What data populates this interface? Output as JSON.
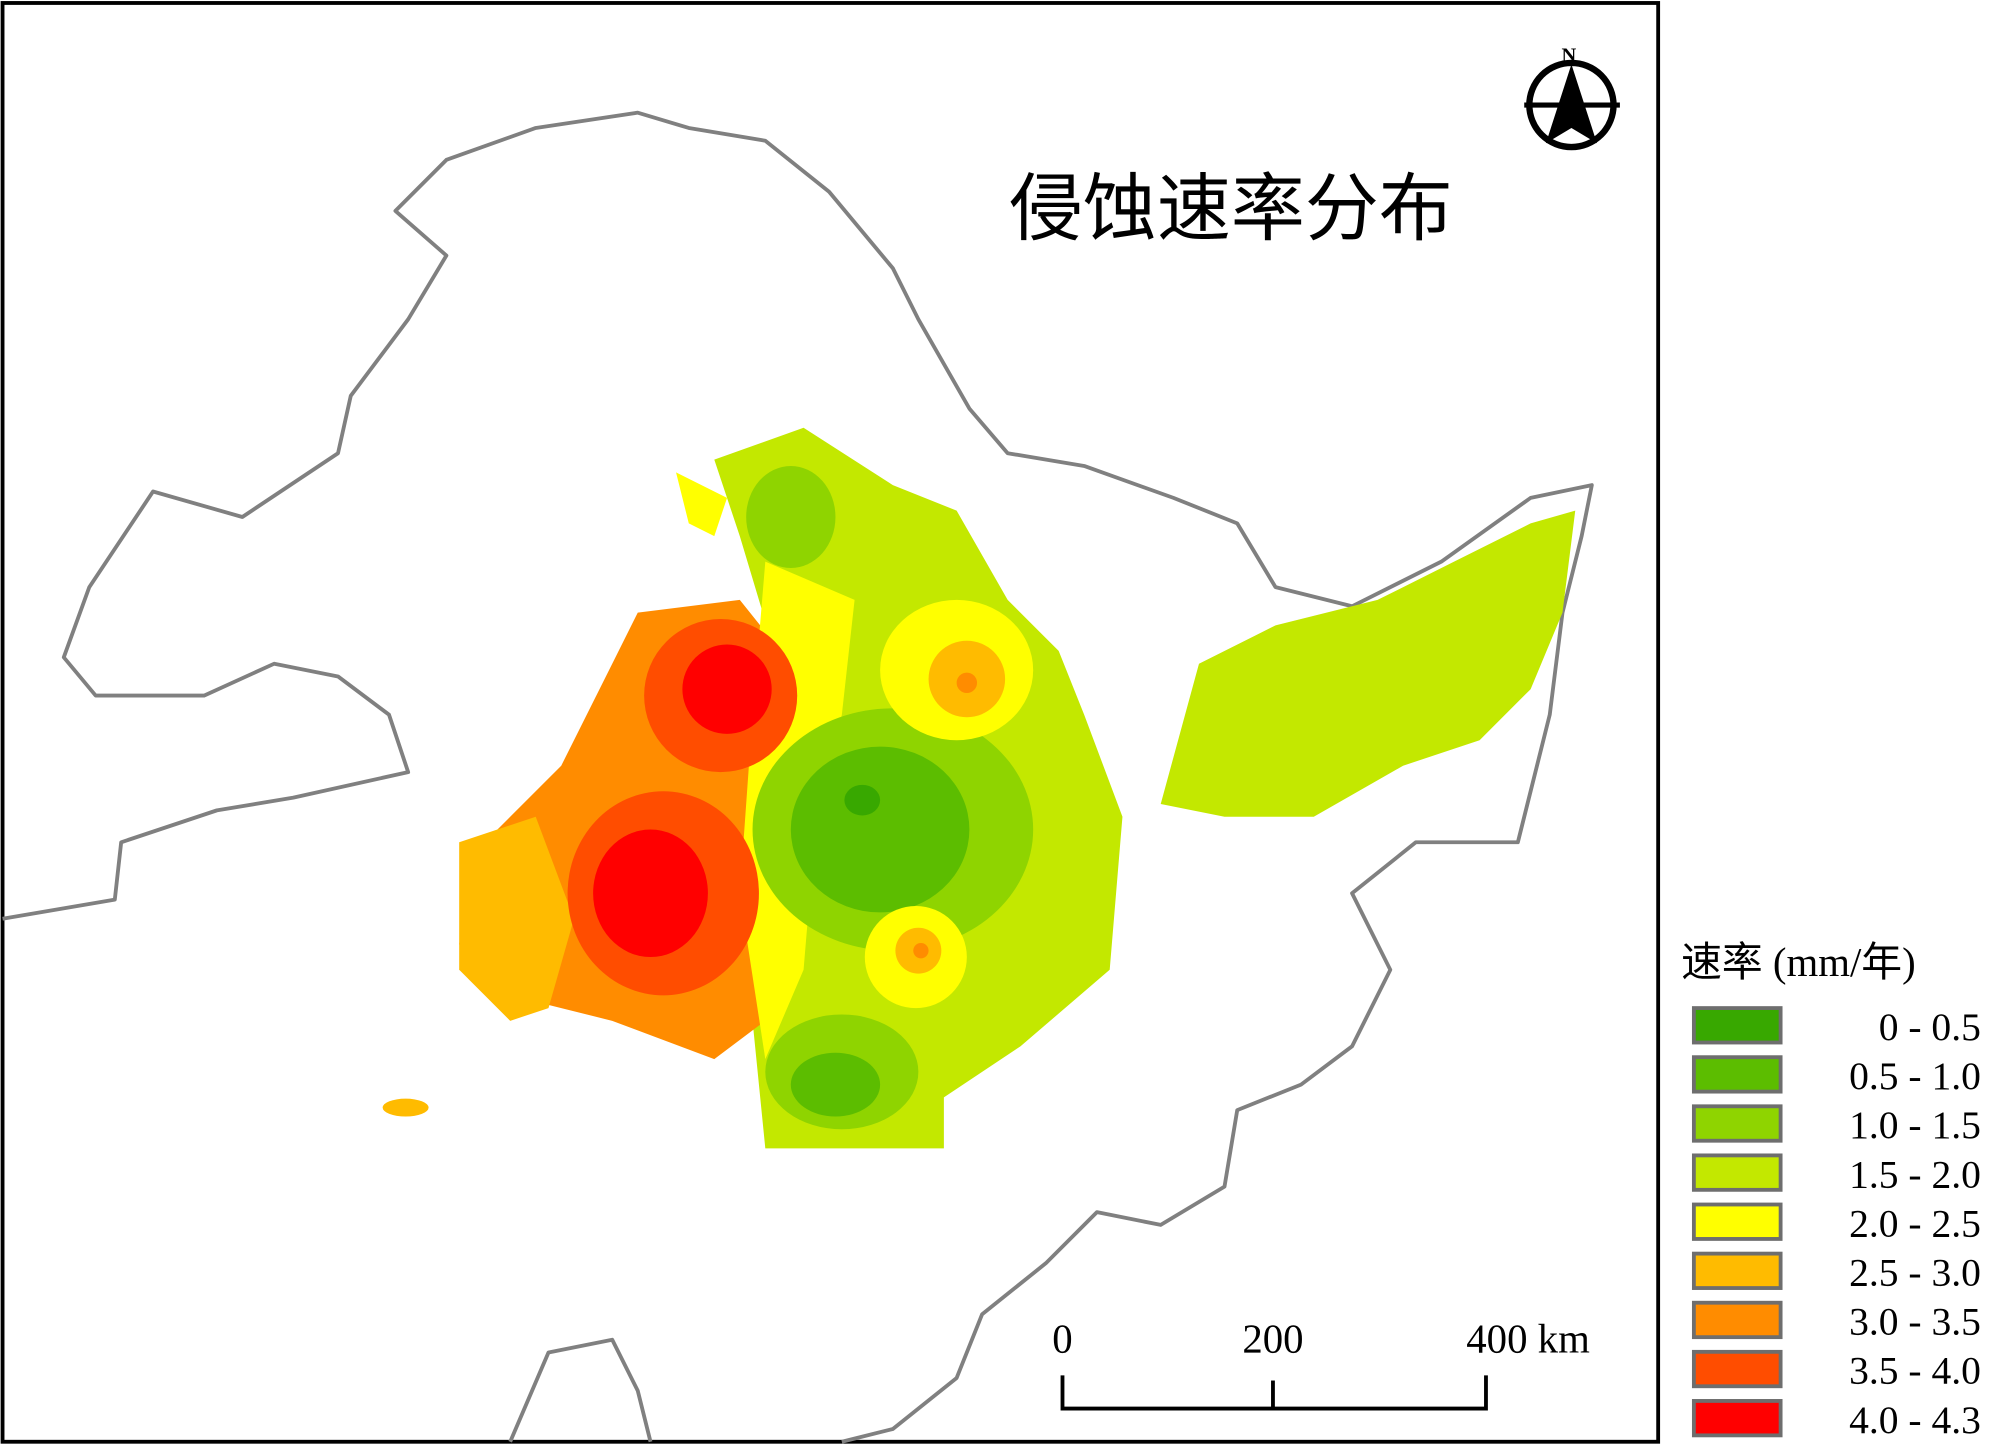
{
  "title": "侵蚀速率分布",
  "north_arrow": {
    "label": "N"
  },
  "legend": {
    "title": "速率 (mm/年)",
    "items": [
      {
        "label": "0 - 0.5",
        "color": "#38a800"
      },
      {
        "label": "0.5 - 1.0",
        "color": "#5cbd00"
      },
      {
        "label": "1.0 - 1.5",
        "color": "#8fd400"
      },
      {
        "label": "1.5 - 2.0",
        "color": "#c3e800"
      },
      {
        "label": "2.0 - 2.5",
        "color": "#ffff00"
      },
      {
        "label": "2.5 - 3.0",
        "color": "#ffbb00"
      },
      {
        "label": "3.0 - 3.5",
        "color": "#ff8c00"
      },
      {
        "label": "3.5 - 4.0",
        "color": "#ff4d00"
      },
      {
        "label": "4.0 - 4.3",
        "color": "#ff0000"
      }
    ]
  },
  "scale_bar": {
    "labels": [
      "0",
      "200",
      "400 km"
    ]
  }
}
